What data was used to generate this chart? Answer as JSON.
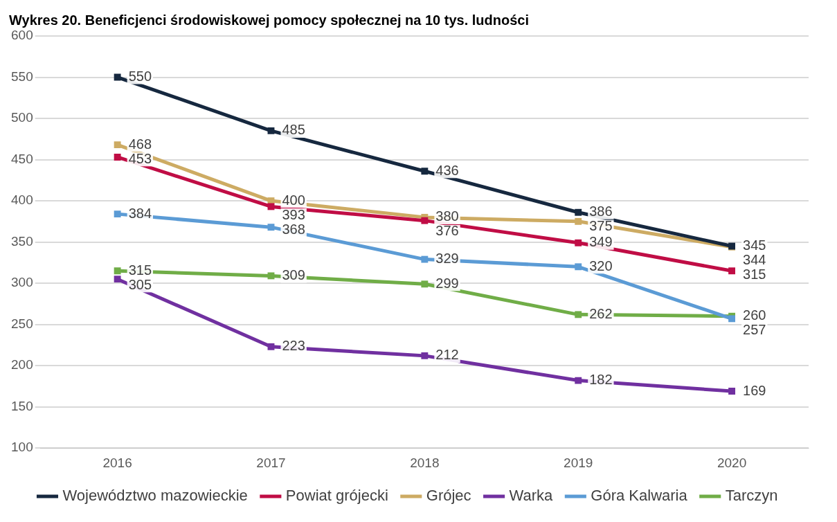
{
  "chart_data": {
    "type": "line",
    "title": "Wykres 20. Beneficjenci środowiskowej pomocy społecznej na 10 tys. ludności",
    "categories": [
      "2016",
      "2017",
      "2018",
      "2019",
      "2020"
    ],
    "series": [
      {
        "name": "Województwo mazowieckie",
        "color": "#16283f",
        "values": [
          550,
          485,
          436,
          386,
          345
        ]
      },
      {
        "name": "Powiat grójecki",
        "color": "#c00d45",
        "values": [
          453,
          393,
          376,
          349,
          315
        ]
      },
      {
        "name": "Grójec",
        "color": "#cdab63",
        "values": [
          468,
          400,
          380,
          375,
          344
        ]
      },
      {
        "name": "Warka",
        "color": "#7030a0",
        "values": [
          305,
          223,
          212,
          182,
          169
        ]
      },
      {
        "name": "Góra Kalwaria",
        "color": "#5b9bd5",
        "values": [
          384,
          368,
          329,
          320,
          257
        ]
      },
      {
        "name": "Tarczyn",
        "color": "#70ad47",
        "values": [
          315,
          309,
          299,
          262,
          260
        ]
      }
    ],
    "ylim": [
      100,
      600
    ],
    "yticks": [
      100,
      150,
      200,
      250,
      300,
      350,
      400,
      450,
      500,
      550,
      600
    ],
    "grid": "y",
    "legend": "bottom",
    "marker": "square",
    "line_style": "solid",
    "data_labels": true
  }
}
